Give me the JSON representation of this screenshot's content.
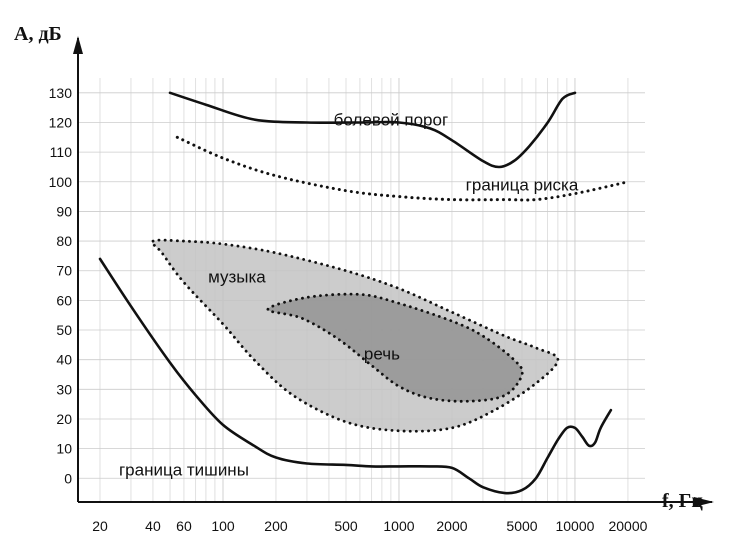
{
  "chart_data": {
    "type": "line",
    "title": "",
    "xlabel": "f, Гц",
    "ylabel": "A, дБ",
    "x_scale": "log",
    "grid": true,
    "xlim": [
      15,
      25000
    ],
    "ylim": [
      -8,
      135
    ],
    "x_ticks": [
      20,
      40,
      60,
      100,
      200,
      500,
      1000,
      2000,
      5000,
      10000,
      20000
    ],
    "x_tick_labels": [
      "20",
      "40",
      "60",
      "100",
      "200",
      "500",
      "1000",
      "2000",
      "5000",
      "10000",
      "20000"
    ],
    "y_ticks": [
      0,
      10,
      20,
      30,
      40,
      50,
      60,
      70,
      80,
      90,
      100,
      110,
      120,
      130
    ],
    "y_tick_labels": [
      "0",
      "10",
      "20",
      "30",
      "40",
      "50",
      "60",
      "70",
      "80",
      "90",
      "100",
      "110",
      "120",
      "130"
    ],
    "series": [
      {
        "name": "болевой порог",
        "style": "solid",
        "x": [
          50,
          80,
          150,
          300,
          600,
          1000,
          1500,
          2000,
          3000,
          3700,
          4500,
          5500,
          7000,
          8500,
          10000
        ],
        "y": [
          130,
          126,
          121,
          120,
          120,
          120,
          118,
          114,
          107,
          105,
          107,
          112,
          120,
          128,
          130
        ]
      },
      {
        "name": "граница риска",
        "style": "dotted",
        "x": [
          55,
          100,
          200,
          500,
          1000,
          2000,
          4000,
          6000,
          10000,
          20000
        ],
        "y": [
          115,
          108,
          102,
          97,
          95,
          94,
          94,
          94,
          96,
          100
        ]
      },
      {
        "name": "граница тишины",
        "style": "solid",
        "x": [
          20,
          30,
          50,
          70,
          100,
          150,
          200,
          300,
          500,
          700,
          1000,
          1500,
          2000,
          2500,
          3000,
          4000,
          5000,
          6000,
          7000,
          8000,
          9000,
          10000,
          11000,
          12000,
          13000,
          14000,
          16000
        ],
        "y": [
          74,
          58,
          39,
          28,
          18,
          11,
          7,
          5,
          4.5,
          4,
          4,
          4,
          3.5,
          0,
          -3,
          -5,
          -4,
          0,
          7,
          13,
          17,
          17,
          14,
          11,
          12,
          17,
          23
        ]
      }
    ],
    "regions": [
      {
        "name": "музыка",
        "style": "dotted-outline",
        "fill": "#c3c3c3",
        "x": [
          40,
          60,
          100,
          200,
          500,
          1000,
          2000,
          4000,
          6000,
          8000,
          6000,
          3500,
          2000,
          1000,
          500,
          250,
          150,
          100,
          60,
          45
        ],
        "y": [
          80,
          80,
          79,
          76,
          70,
          64,
          56,
          48,
          44,
          40,
          32,
          23,
          17,
          16,
          19,
          28,
          40,
          52,
          66,
          76
        ]
      },
      {
        "name": "речь",
        "style": "dotted-outline",
        "fill": "#939393",
        "x": [
          180,
          300,
          600,
          1000,
          2000,
          3000,
          4500,
          5000,
          4000,
          2500,
          1500,
          1000,
          700,
          450,
          280
        ],
        "y": [
          57,
          61,
          62,
          59,
          53,
          48,
          40,
          35,
          28,
          26,
          27,
          31,
          38,
          47,
          54
        ]
      }
    ],
    "annotations": [
      {
        "text": "болевой порог",
        "x": 900,
        "y": 121
      },
      {
        "text": "граница риска",
        "x": 5000,
        "y": 99
      },
      {
        "text": "музыка",
        "x": 120,
        "y": 68
      },
      {
        "text": "речь",
        "x": 800,
        "y": 42
      },
      {
        "text": "граница тишины",
        "x": 60,
        "y": 3
      }
    ],
    "colors": {
      "line": "#111111",
      "grid": "#cccccc",
      "music_fill": "#c3c3c3",
      "speech_fill": "#939393"
    }
  }
}
